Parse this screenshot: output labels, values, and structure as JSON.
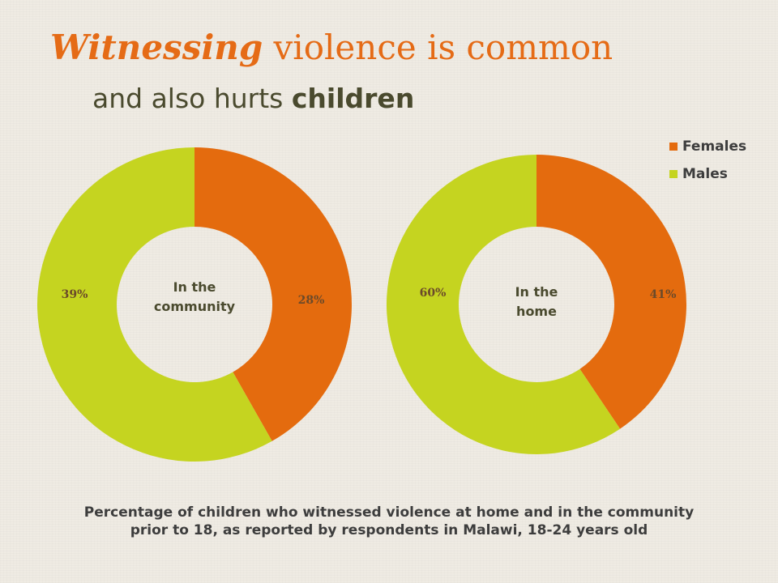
{
  "title": {
    "emphasis": "Witnessing",
    "rest": " violence is common"
  },
  "subtitle": {
    "plain": "and also hurts ",
    "bold": "children"
  },
  "caption": {
    "line1": "Percentage of children who witnessed violence at home and in the community",
    "line2": "prior to 18, as reported by respondents in Malawi, 18-24 years old"
  },
  "legend": [
    {
      "label": "Females",
      "color": "#e46b0e"
    },
    {
      "label": "Males",
      "color": "#c5d420"
    }
  ],
  "chart_data": [
    {
      "type": "pie",
      "title": "In the community",
      "categories": [
        "Females",
        "Males"
      ],
      "values": [
        28,
        39
      ],
      "labels": [
        "28%",
        "39%"
      ]
    },
    {
      "type": "pie",
      "title": "In the home",
      "categories": [
        "Females",
        "Males"
      ],
      "values": [
        41,
        60
      ],
      "labels": [
        "41%",
        "60%"
      ]
    }
  ]
}
